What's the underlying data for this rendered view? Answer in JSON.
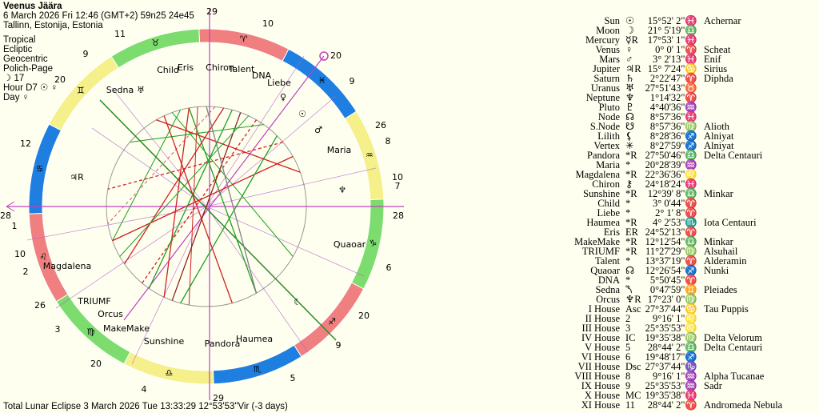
{
  "header": {
    "name": "Veenus Jäära",
    "datetime": "6 March 2026  Fri  12:46 (GMT+2) 59n25  24e45",
    "place": "Tallinn, Estonija, Estonia",
    "settings": [
      "Tropical",
      "Ecliptic",
      "Geocentric",
      "Polich-Page",
      "☽ 17",
      "Hour D7 ☉ ♀",
      "Day ♀"
    ]
  },
  "wheel": {
    "signs": [
      "♈",
      "♉",
      "♊",
      "♋",
      "♌",
      "♍",
      "♎",
      "♏",
      "♐",
      "♑",
      "♒",
      "♓"
    ],
    "house_numbers": [
      "1",
      "2",
      "3",
      "4",
      "5",
      "6",
      "7",
      "8",
      "9",
      "10",
      "11",
      "12"
    ],
    "cusp_degrees": [
      "28",
      "10",
      "26",
      "20",
      "29",
      "9",
      "20",
      "28",
      "10",
      "26",
      "20",
      "29",
      "9",
      "20"
    ],
    "points": [
      "Child",
      "Eris",
      "Chiron",
      "Talent",
      "DNA",
      "Liebe",
      "Sedna",
      "Maria",
      "Quaoar",
      "Magdalena",
      "TRIUMF",
      "Orcus",
      "MakeMake",
      "Sunshine",
      "Pandora",
      "Haumea",
      "♅",
      "♃R",
      "♆",
      "☉",
      "♂",
      "♀",
      "☾"
    ]
  },
  "table": {
    "rows": [
      {
        "name": "Sun",
        "glyph": "☉",
        "pos": "15°52' 2\"♓",
        "star": "Achernar"
      },
      {
        "name": "Moon",
        "glyph": "☽",
        "pos": "21° 5'19\"♎"
      },
      {
        "name": "Mercury",
        "glyph": "☿R",
        "pos": "17°53' 1\"♓"
      },
      {
        "name": "Venus",
        "glyph": "♀",
        "pos": "0° 0' 1\"♈",
        "star": "Scheat"
      },
      {
        "name": "Mars",
        "glyph": "♂",
        "pos": "3° 2'13\"♓",
        "star": "Enif"
      },
      {
        "name": "Jupiter",
        "glyph": "♃R",
        "pos": "15° 7'24\"♋",
        "star": "Sirius"
      },
      {
        "name": "Saturn",
        "glyph": "♄",
        "pos": "2°22'47\"♈",
        "star": "Diphda"
      },
      {
        "name": "Uranus",
        "glyph": "♅",
        "pos": "27°51'43\"♉"
      },
      {
        "name": "Neptune",
        "glyph": "♆",
        "pos": "1°14'32\"♈"
      },
      {
        "name": "Pluto",
        "glyph": "♇",
        "pos": "4°40'36\"♒"
      },
      {
        "name": "Node",
        "glyph": "☊",
        "pos": "8°57'36\"♓"
      },
      {
        "name": "S.Node",
        "glyph": "☋",
        "pos": "8°57'36\"♍",
        "star": "Alioth"
      },
      {
        "name": "Lilith",
        "glyph": "⚸",
        "pos": "8°28'36\"♐",
        "star": "Alniyat"
      },
      {
        "name": "Vertex",
        "glyph": "✳",
        "pos": "8°27'59\"♐",
        "star": "Alniyat"
      },
      {
        "name": "Pandora",
        "glyph": "*R",
        "pos": "27°50'46\"♎",
        "star": "Delta Centauri"
      },
      {
        "name": "Maria",
        "glyph": "*",
        "pos": "20°28'39\"♒"
      },
      {
        "name": "Magdalena",
        "glyph": "*R",
        "pos": "22°36'36\"♌"
      },
      {
        "name": "Chiron",
        "glyph": "⚷",
        "pos": "24°18'24\"♓"
      },
      {
        "name": "Sunshine",
        "glyph": "*R",
        "pos": "12°39' 8\"♎",
        "star": "Minkar"
      },
      {
        "name": "Child",
        "glyph": "*",
        "pos": "3° 0'44\"♈"
      },
      {
        "name": "Liebe",
        "glyph": "*",
        "pos": "2° 1' 8\"♈"
      },
      {
        "name": "Haumea",
        "glyph": "*R",
        "pos": "4° 2'53\"♏",
        "star": "Iota Centauri"
      },
      {
        "name": "Eris",
        "glyph": "ER",
        "pos": "24°52'13\"♈"
      },
      {
        "name": "MakeMake",
        "glyph": "*R",
        "pos": "12°12'54\"♎",
        "star": "Minkar"
      },
      {
        "name": "TRIUMF",
        "glyph": "*R",
        "pos": "11°27'29\"♍",
        "star": "Alsuhail"
      },
      {
        "name": "Talent",
        "glyph": "*",
        "pos": "13°37'19\"♈",
        "star": "Alderamin"
      },
      {
        "name": "Quaoar",
        "glyph": "☊",
        "pos": "12°26'54\"♐",
        "star": "Nunki"
      },
      {
        "name": "DNA",
        "glyph": "*",
        "pos": "5°50'45\"♈"
      },
      {
        "name": "Sedna",
        "glyph": "⯲",
        "pos": "0°47'59\"♊",
        "star": "Pleiades"
      },
      {
        "name": "Orcus",
        "glyph": "♆R",
        "pos": "17°23' 0\"♍"
      },
      {
        "name": "I House",
        "glyph": "Asc",
        "pos": "27°37'44\"♋",
        "star": "Tau Puppis"
      },
      {
        "name": "II House",
        "glyph": "2",
        "pos": "9°16' 1\"♌"
      },
      {
        "name": "III House",
        "glyph": "3",
        "pos": "25°35'53\"♌"
      },
      {
        "name": "IV House",
        "glyph": "IC",
        "pos": "19°35'38\"♍",
        "star": "Delta Velorum"
      },
      {
        "name": "V House",
        "glyph": "5",
        "pos": "28°44' 2\"♎",
        "star": "Delta Centauri"
      },
      {
        "name": "VI House",
        "glyph": "6",
        "pos": "19°48'17\"♐"
      },
      {
        "name": "VII House",
        "glyph": "Dsc",
        "pos": "27°37'44\"♑"
      },
      {
        "name": "VIII House",
        "glyph": "8",
        "pos": "9°16' 1\"♒",
        "star": "Alpha Tucanae"
      },
      {
        "name": "IX House",
        "glyph": "9",
        "pos": "25°35'53\"♒",
        "star": "Sadr"
      },
      {
        "name": "X House",
        "glyph": "MC",
        "pos": "19°35'38\"♓"
      },
      {
        "name": "XI House",
        "glyph": "11",
        "pos": "28°44' 2\"♈",
        "star": "Andromeda Nebula"
      }
    ]
  },
  "footer": "Total Lunar Eclipse 3 March 2026 Tue 13:33:29 12°53'53\"Vir (-3 days)"
}
